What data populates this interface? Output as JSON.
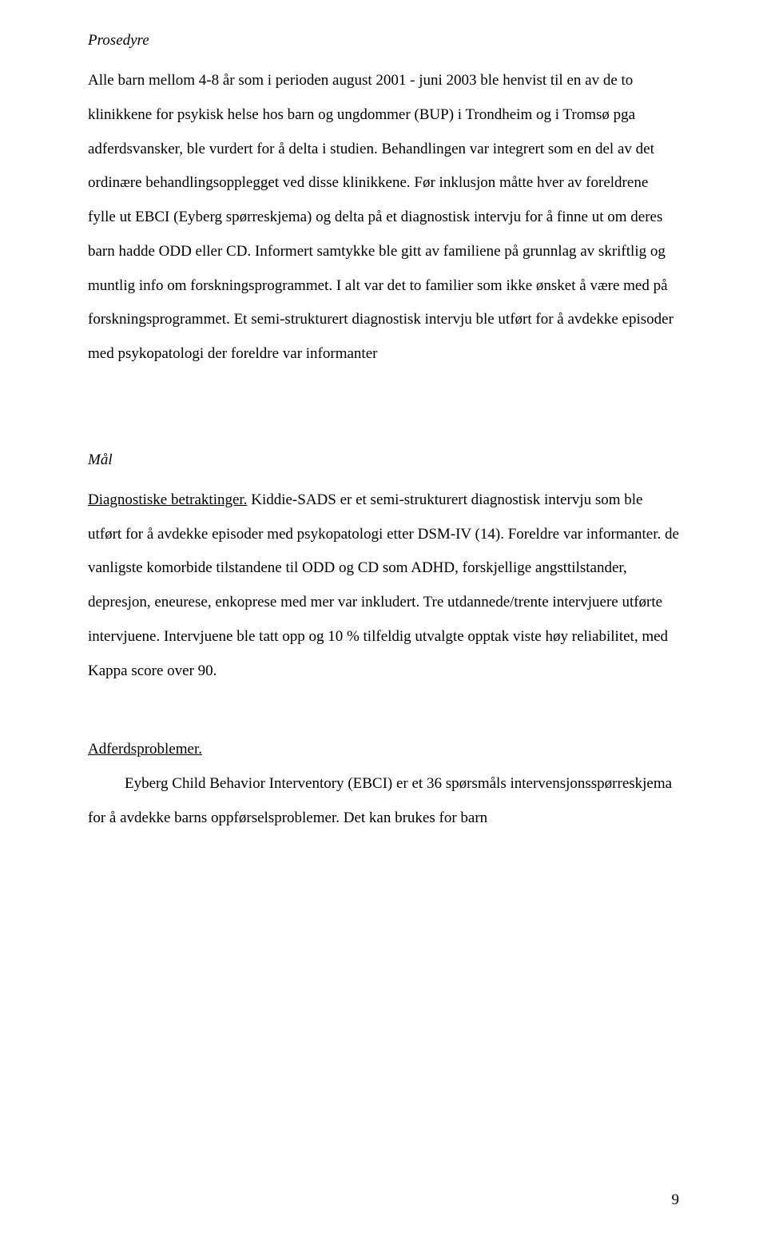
{
  "heading1": "Prosedyre",
  "p1_a": "Alle barn mellom 4-8 år som i perioden august 2001 - juni 2003 ble henvist til en av de to klinikkene for psykisk helse hos barn og ungdommer (BUP) i Trondheim og i Tromsø pga adferdsvansker, ble vurdert for å delta i studien.",
  "p1_b": "Behandlingen var integrert som en del av det ordinære behandlingsopplegget ved disse klinikkene. Før inklusjon måtte hver av foreldrene fylle ut EBCI (Eyberg spørreskjema) og delta på et diagnostisk intervju for å finne ut om deres barn hadde ODD eller CD.",
  "p1_c": "Informert samtykke ble gitt av familiene på grunnlag av skriftlig og muntlig info om forskningsprogrammet. I alt var det to familier som ikke ønsket å være med på forskningsprogrammet.",
  "p1_d": "Et semi-strukturert diagnostisk intervju ble utført for å avdekke episoder med psykopatologi der foreldre var informanter",
  "heading2": "Mål",
  "p2_label": "Diagnostiske betraktinger.",
  "p2_body": " Kiddie-SADS er et semi-strukturert diagnostisk intervju som ble utført for å avdekke episoder med psykopatologi etter DSM-IV (14). Foreldre var informanter. de vanligste komorbide tilstandene til ODD og CD som ADHD, forskjellige angsttilstander, depresjon, eneurese, enkoprese med mer var inkludert. Tre utdannede/trente intervjuere utførte intervjuene. Intervjuene ble tatt opp og 10 % tilfeldig utvalgte opptak viste høy reliabilitet, med Kappa score over 90.",
  "p3_label": "Adferdsproblemer.",
  "p3_body": "Eyberg Child Behavior Interventory (EBCI) er et 36 spørsmåls intervensjonsspørreskjema for å avdekke barns oppførselsproblemer. Det kan brukes for barn",
  "page_number": "9"
}
